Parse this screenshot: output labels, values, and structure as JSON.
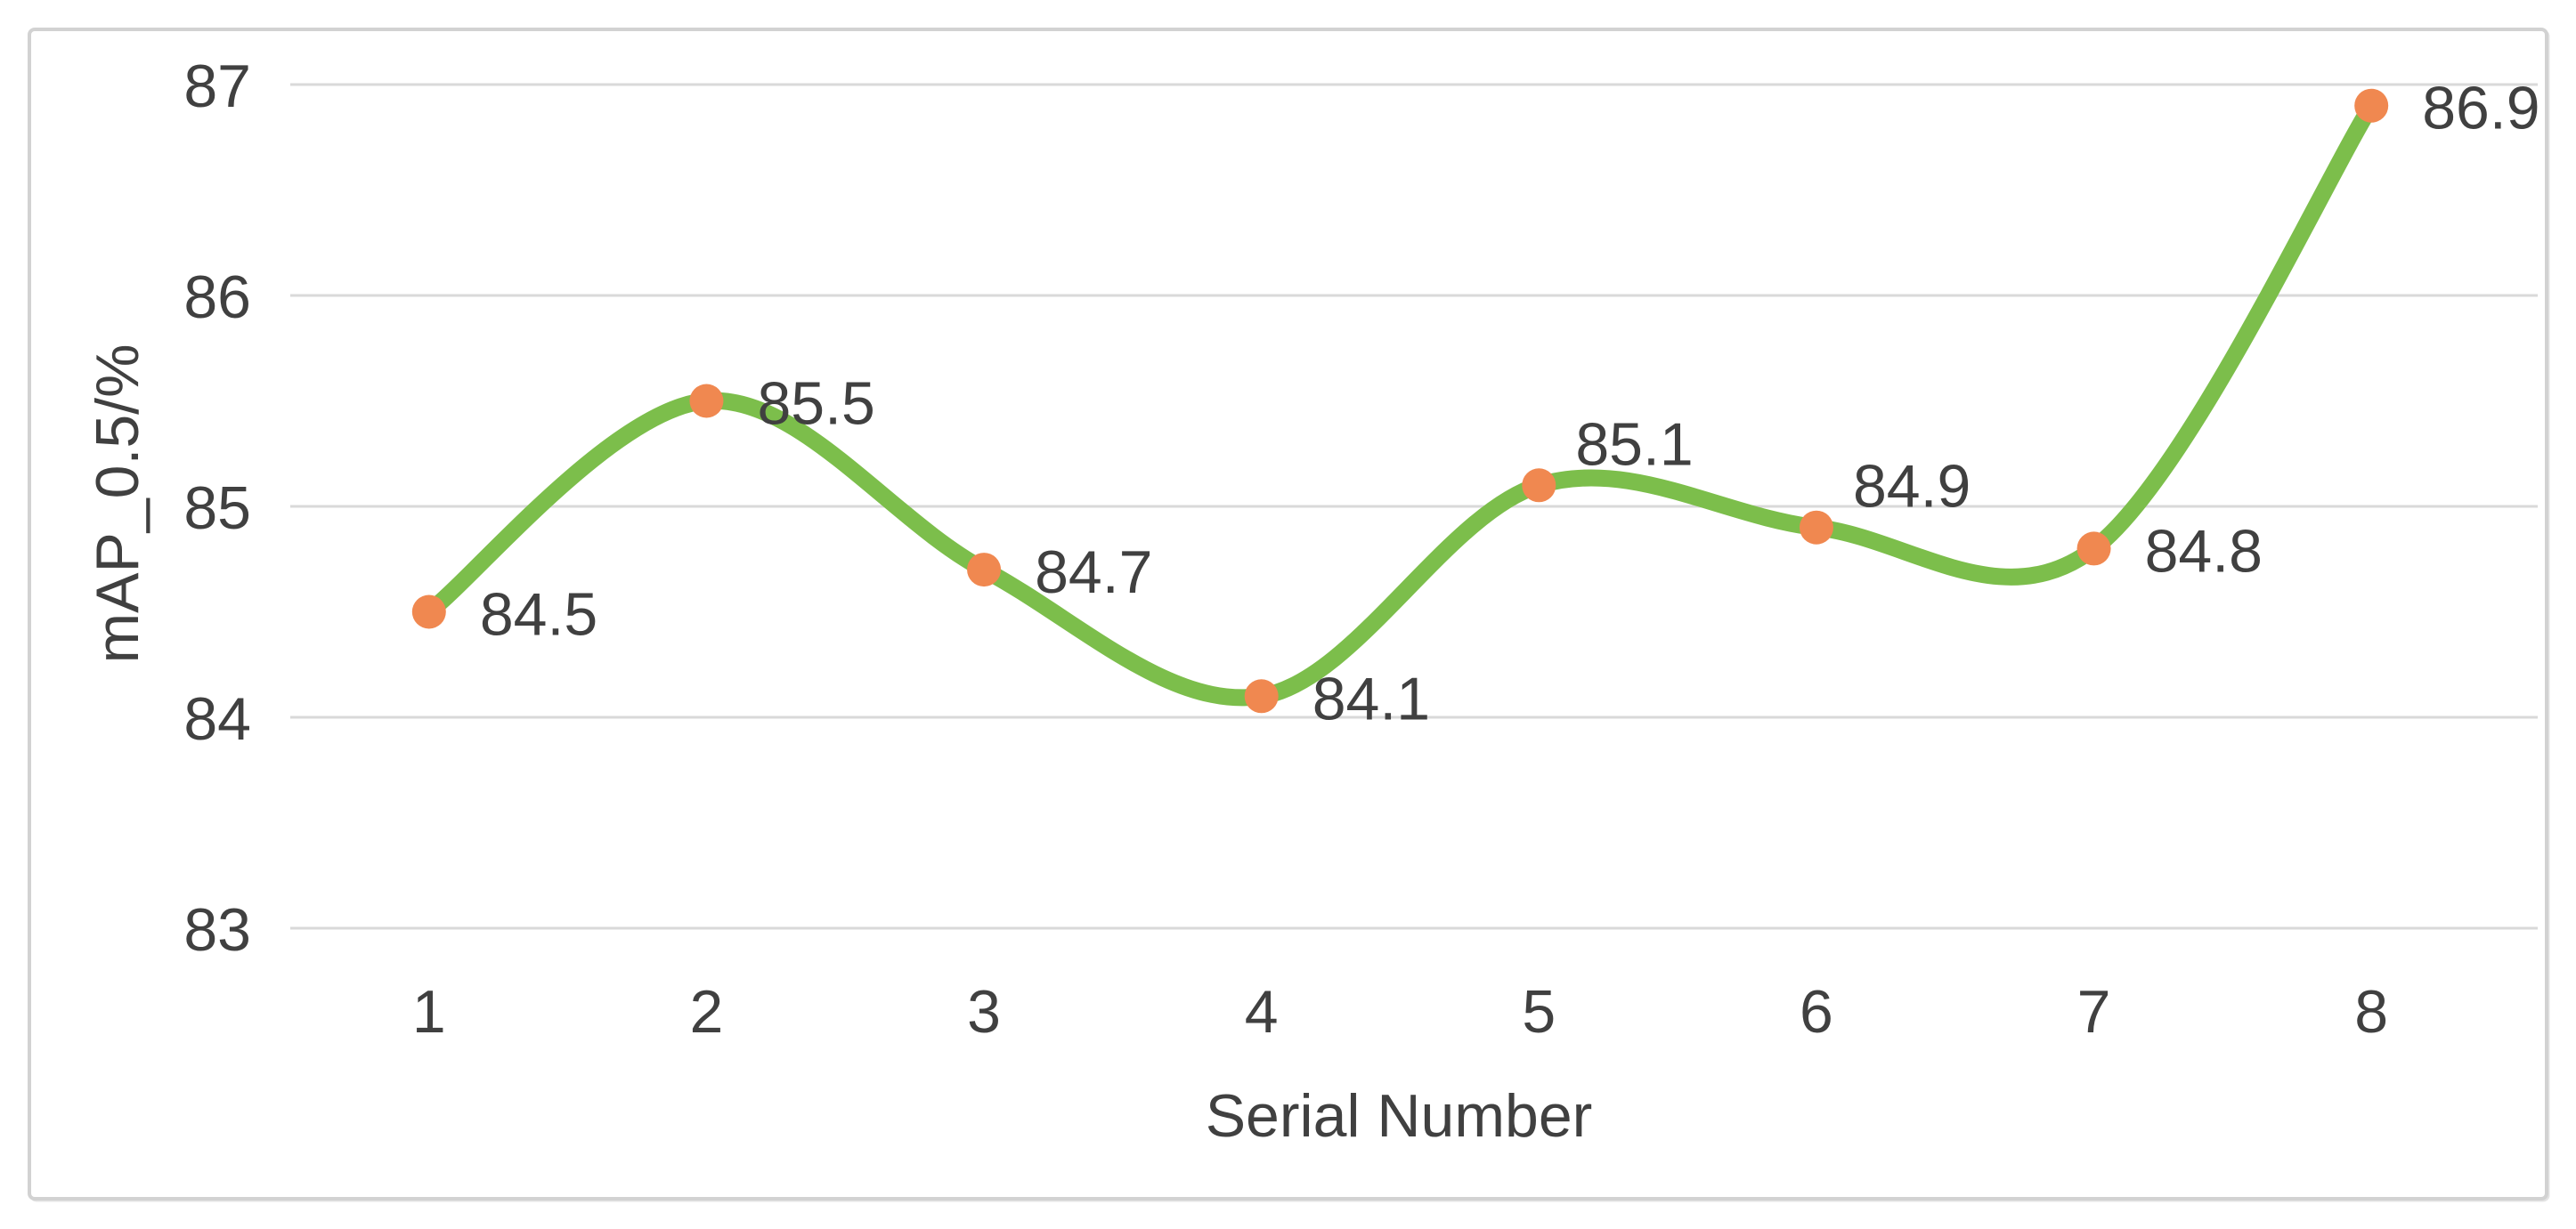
{
  "chart_data": {
    "type": "line",
    "title": "",
    "xlabel": "Serial Number",
    "ylabel": "mAP_0.5/%",
    "categories": [
      "1",
      "2",
      "3",
      "4",
      "5",
      "6",
      "7",
      "8"
    ],
    "series": [
      {
        "name": "mAP_0.5",
        "values": [
          84.5,
          85.5,
          84.7,
          84.1,
          85.1,
          84.9,
          84.8,
          86.9
        ],
        "data_labels": [
          "84.5",
          "85.5",
          "84.7",
          "84.1",
          "85.1",
          "84.9",
          "84.8",
          "86.9"
        ]
      }
    ],
    "ylim": [
      83,
      87
    ],
    "yticks": [
      "83",
      "84",
      "85",
      "86",
      "87"
    ],
    "grid": "horizontal-only",
    "legend_position": "none",
    "line_style": "smooth-spline",
    "marker_style": "circle",
    "colors": {
      "line": "#7CBE4B",
      "marker": "#F08850",
      "text": "#404040",
      "gridline": "#D9D9D9",
      "frame_border": "#D2D2D2",
      "background": "#FFFFFF"
    }
  }
}
